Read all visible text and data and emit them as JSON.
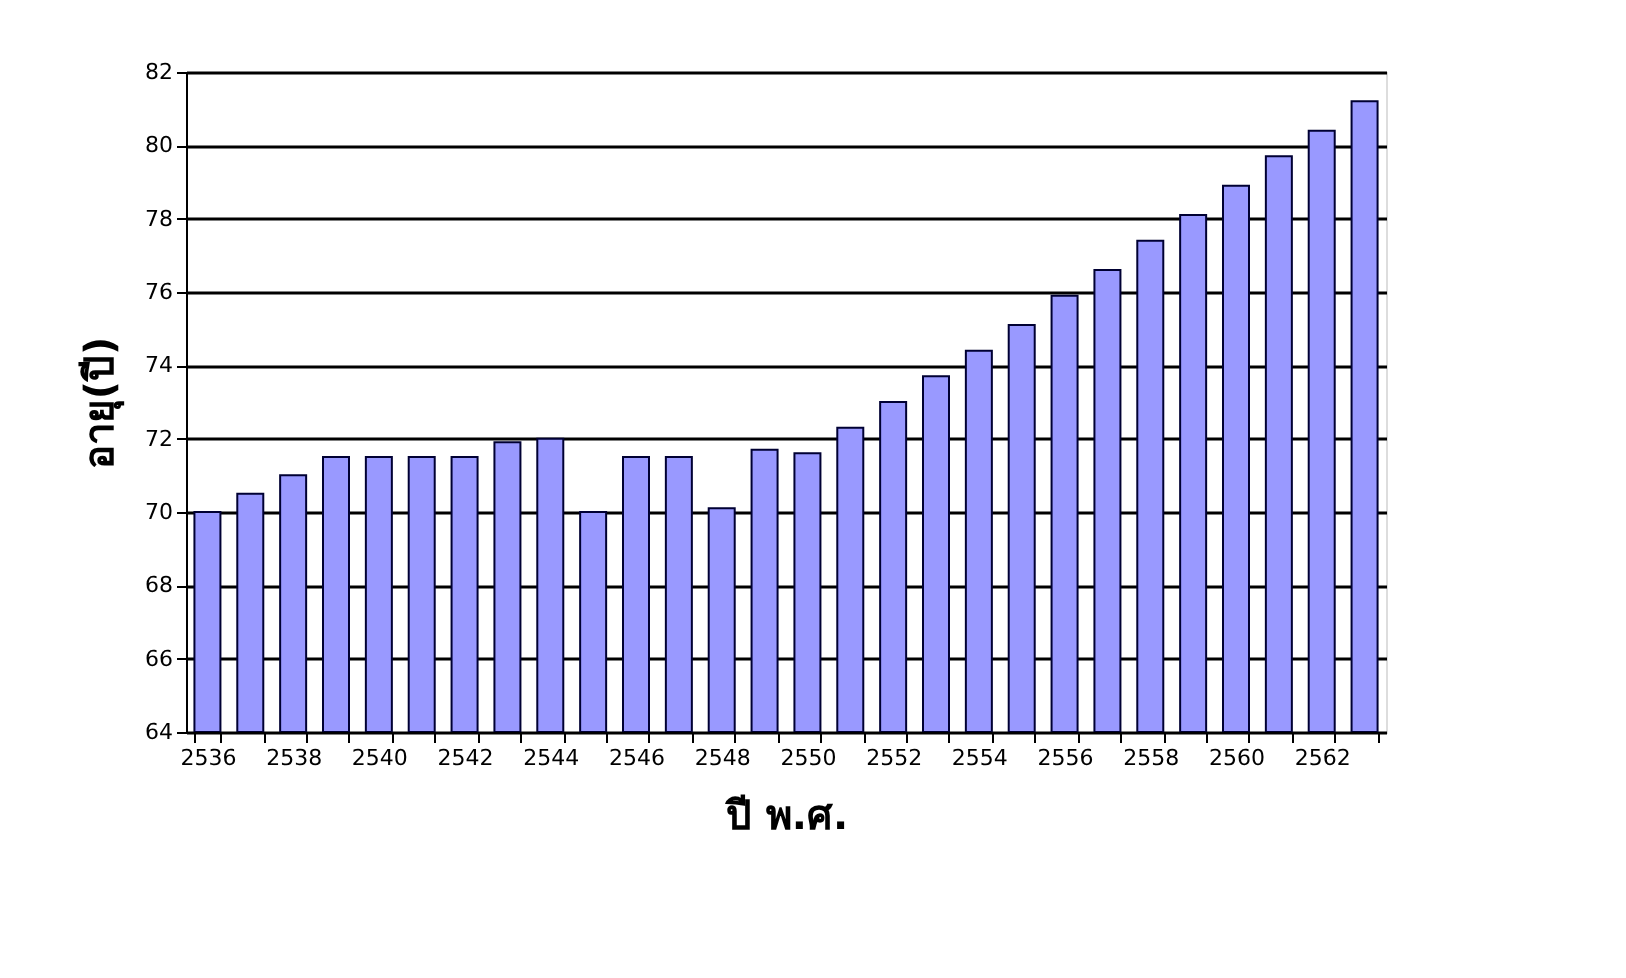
{
  "chart_data": {
    "type": "bar",
    "xlabel": "ปี พ.ศ.",
    "ylabel": "อายุ(ปี)",
    "categories": [
      "2536",
      null,
      "2538",
      null,
      "2540",
      null,
      "2542",
      null,
      "2544",
      null,
      "2546",
      null,
      "2548",
      null,
      "2550",
      null,
      "2552",
      null,
      "2554",
      null,
      "2556",
      null,
      "2558",
      null,
      "2560",
      null,
      "2562",
      null
    ],
    "series": [
      {
        "color": "#9999ff",
        "values": [
          70.0,
          70.5,
          71.0,
          71.5,
          71.5,
          71.5,
          71.5,
          71.9,
          72.0,
          70.0,
          71.5,
          71.5,
          70.1,
          71.7,
          71.6,
          72.3,
          73.0,
          73.7,
          74.4,
          75.1,
          75.9,
          76.6,
          77.4,
          78.1,
          78.9,
          79.7,
          80.4,
          81.2
        ]
      }
    ],
    "ylim": [
      64,
      82
    ],
    "yticks": [
      64,
      66,
      68,
      70,
      72,
      74,
      76,
      78,
      80,
      82
    ],
    "grid": "y"
  }
}
